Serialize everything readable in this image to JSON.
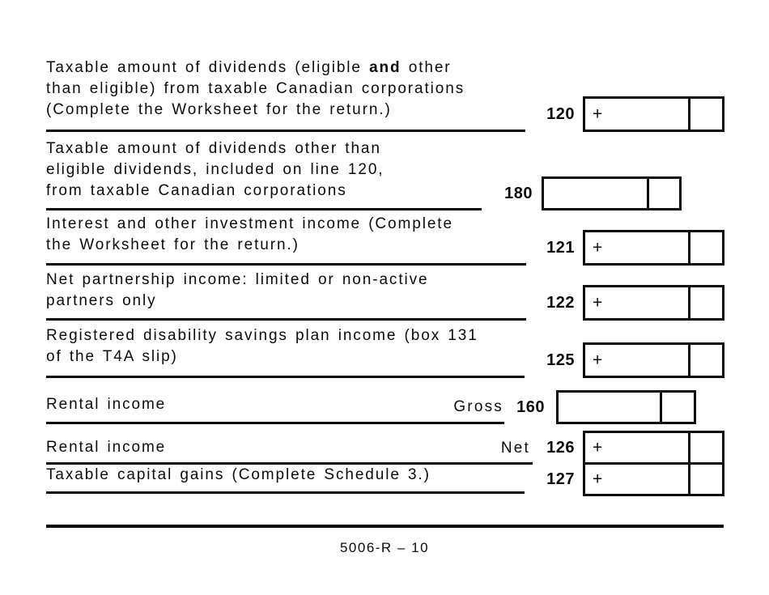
{
  "form": {
    "plus_sign": "+",
    "footer": "5006-R – 10",
    "colors": {
      "ink": "#0b0b0b",
      "paper": "#ffffff"
    }
  },
  "rows": [
    {
      "number": "120",
      "line1_pre": "Taxable amount of dividends (eligible ",
      "line1_bold": "and",
      "line1_post": " other",
      "line2": "than eligible) from taxable Canadian corporations",
      "line3": "(Complete the Worksheet for the return.)",
      "has_plus": true
    },
    {
      "number": "180",
      "line1": "Taxable amount of dividends other than",
      "line2": "eligible dividends, included on line 120,",
      "line3": "from taxable Canadian corporations",
      "has_plus": false
    },
    {
      "number": "121",
      "line1": "Interest and other investment income (Complete",
      "line2": "the Worksheet for the return.)",
      "has_plus": true
    },
    {
      "number": "122",
      "line1": "Net partnership income: limited or non-active",
      "line2": "partners only",
      "has_plus": true
    },
    {
      "number": "125",
      "line1": "Registered disability savings plan income (box 131",
      "line2": "of the T4A slip)",
      "has_plus": true
    },
    {
      "number": "160",
      "line1": "Rental income",
      "qualifier": "Gross",
      "has_plus": false
    },
    {
      "number": "126",
      "line1": "Rental income",
      "qualifier": "Net",
      "has_plus": true
    },
    {
      "number": "127",
      "line1": "Taxable capital gains (Complete Schedule 3.)",
      "has_plus": true
    }
  ]
}
